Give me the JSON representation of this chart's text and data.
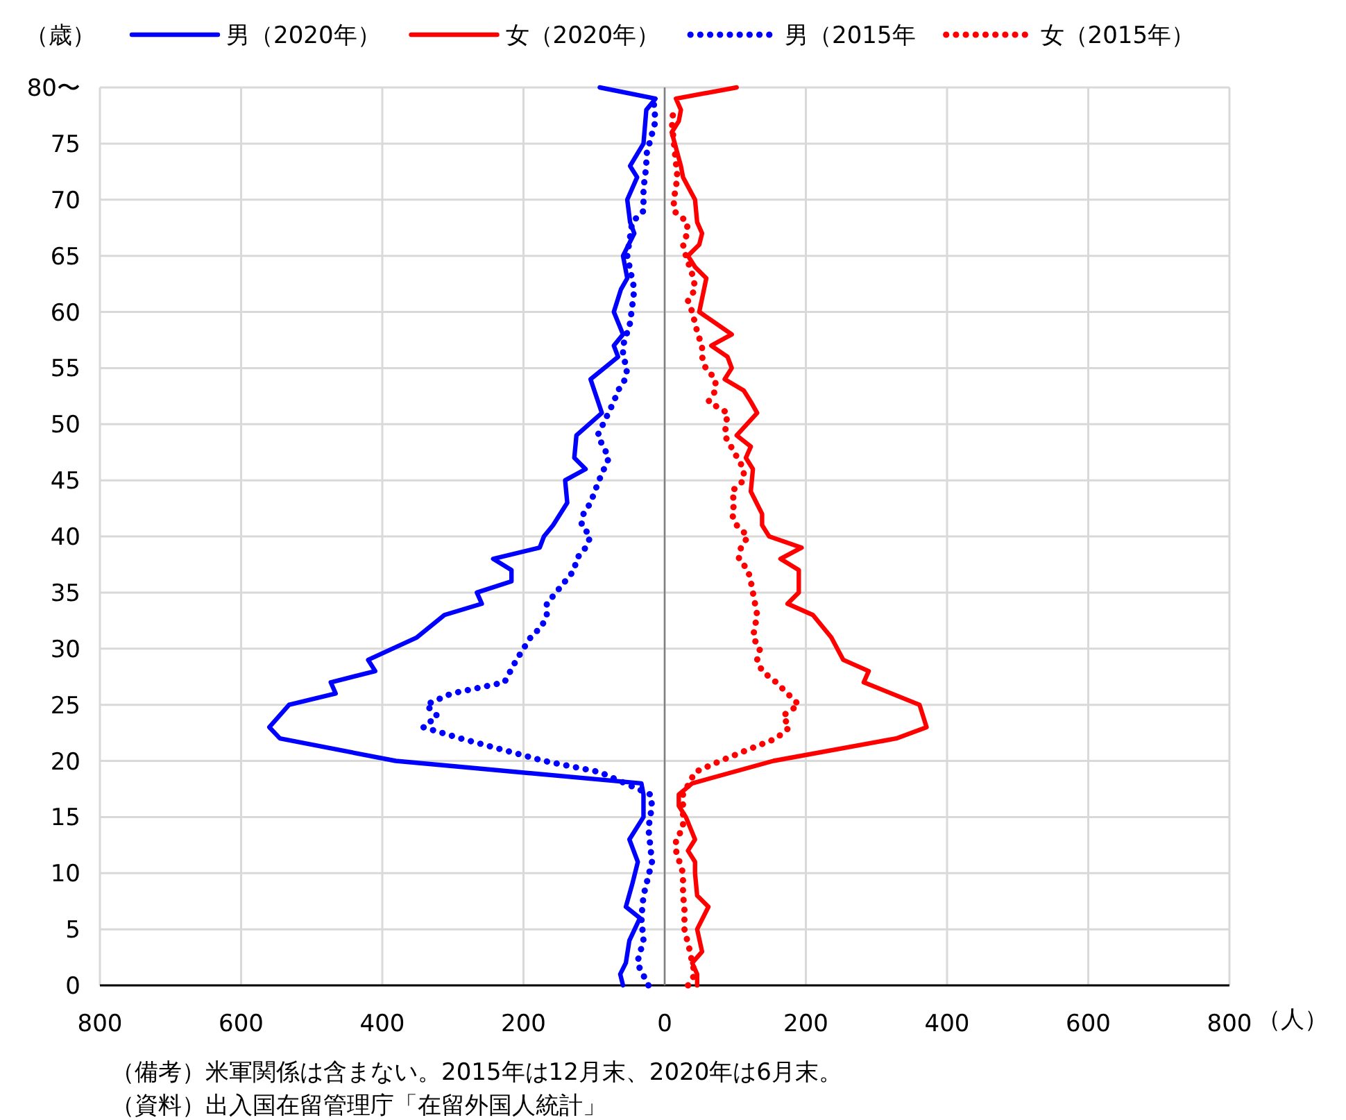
{
  "chart_data": {
    "type": "line",
    "orientation": "horizontal",
    "ylabel": "（歳）",
    "xlabel": "（人）",
    "xlim": [
      -800,
      800
    ],
    "xticks": [
      {
        "value": -800,
        "label": "800"
      },
      {
        "value": -600,
        "label": "600"
      },
      {
        "value": -400,
        "label": "400"
      },
      {
        "value": -200,
        "label": "200"
      },
      0,
      200,
      400,
      600,
      800
    ],
    "ylim": [
      0,
      80
    ],
    "yticks": [
      0,
      5,
      10,
      15,
      20,
      25,
      30,
      35,
      40,
      45,
      50,
      55,
      60,
      65,
      70,
      75,
      {
        "value": 80,
        "label": "80〜"
      }
    ],
    "grid": true,
    "legend": "top",
    "ref_lines": [
      {
        "axis": "x",
        "value": 0,
        "color": "#7f7f7f"
      }
    ],
    "series": [
      {
        "name": "男（2020年）",
        "color": "#0000ff",
        "line_style": "solid",
        "x": [
          0,
          1,
          2,
          4,
          6,
          7,
          9,
          11,
          13,
          15,
          17,
          18,
          20,
          22,
          23,
          25,
          26,
          27,
          28,
          29,
          31,
          33,
          34,
          35,
          36,
          37,
          38,
          39,
          40,
          41,
          43,
          45,
          46,
          47,
          49,
          51,
          54,
          56,
          57,
          58,
          60,
          62,
          63,
          65,
          67,
          68,
          70,
          72,
          73,
          75,
          78,
          79,
          80
        ],
        "values": [
          -59,
          -63,
          -55,
          -50,
          -35,
          -55,
          -46,
          -38,
          -50,
          -30,
          -30,
          -33,
          -381,
          -545,
          -560,
          -532,
          -466,
          -473,
          -410,
          -420,
          -351,
          -312,
          -259,
          -266,
          -217,
          -217,
          -243,
          -177,
          -171,
          -158,
          -138,
          -141,
          -112,
          -128,
          -125,
          -89,
          -105,
          -66,
          -72,
          -59,
          -72,
          -62,
          -53,
          -59,
          -43,
          -49,
          -53,
          -39,
          -49,
          -30,
          -26,
          -13,
          -92
        ]
      },
      {
        "name": "女（2020年）",
        "color": "#ff0000",
        "line_style": "solid",
        "x": [
          0,
          1,
          2,
          3,
          5,
          7,
          8,
          10,
          11,
          12,
          13,
          15,
          16,
          17,
          18,
          20,
          22,
          23,
          25,
          27,
          28,
          29,
          31,
          33,
          34,
          35,
          37,
          38,
          39,
          40,
          41,
          42,
          44,
          46,
          47,
          48,
          49,
          51,
          52,
          53,
          54,
          55,
          56,
          57,
          58,
          59,
          60,
          63,
          64,
          65,
          66,
          67,
          68,
          70,
          72,
          73,
          76,
          77,
          78,
          79,
          80
        ],
        "values": [
          46,
          46,
          39,
          53,
          46,
          62,
          46,
          43,
          43,
          33,
          43,
          30,
          20,
          20,
          39,
          154,
          328,
          371,
          361,
          282,
          289,
          253,
          236,
          210,
          174,
          190,
          190,
          164,
          194,
          148,
          138,
          138,
          122,
          125,
          115,
          122,
          102,
          131,
          122,
          112,
          85,
          95,
          89,
          66,
          95,
          72,
          49,
          59,
          43,
          33,
          49,
          53,
          46,
          43,
          26,
          23,
          10,
          20,
          23,
          16,
          102
        ]
      },
      {
        "name": "男（2015年",
        "color": "#0000ff",
        "line_style": "dotted",
        "x": [
          0,
          2,
          4,
          6,
          8,
          9,
          11,
          14,
          16,
          17,
          19,
          20,
          21,
          22,
          23,
          24,
          25,
          26,
          27,
          29,
          30,
          31,
          32,
          33,
          34,
          36,
          37,
          38,
          39,
          40,
          41,
          42,
          43,
          45,
          47,
          49,
          52,
          53,
          54,
          55,
          56,
          57,
          59,
          60,
          62,
          65,
          68,
          69,
          71,
          73,
          74,
          77,
          79
        ],
        "values": [
          -23,
          -39,
          -30,
          -33,
          -30,
          -26,
          -18,
          -23,
          -18,
          -20,
          -92,
          -171,
          -230,
          -289,
          -342,
          -322,
          -338,
          -302,
          -227,
          -210,
          -200,
          -190,
          -174,
          -167,
          -167,
          -141,
          -128,
          -125,
          -112,
          -105,
          -118,
          -115,
          -105,
          -93,
          -79,
          -95,
          -72,
          -66,
          -56,
          -53,
          -59,
          -59,
          -49,
          -47,
          -43,
          -53,
          -46,
          -30,
          -30,
          -26,
          -26,
          -13,
          -16
        ]
      },
      {
        "name": "女（2015年）",
        "color": "#ff0000",
        "line_style": "dotted",
        "x": [
          0,
          1,
          2,
          3,
          5,
          6,
          7,
          8,
          10,
          11,
          12,
          13,
          14,
          16,
          17,
          19,
          20,
          21,
          22,
          23,
          24,
          25,
          26,
          27,
          28,
          29,
          30,
          31,
          33,
          34,
          35,
          36,
          37,
          38,
          39,
          40,
          41,
          42,
          43,
          44,
          45,
          46,
          49,
          51,
          52,
          53,
          54,
          55,
          56,
          57,
          58,
          60,
          61,
          62,
          63,
          65,
          66,
          67,
          68,
          69,
          70,
          72,
          77,
          78
        ],
        "values": [
          33,
          43,
          39,
          36,
          28,
          28,
          28,
          26,
          26,
          21,
          16,
          16,
          26,
          26,
          26,
          43,
          79,
          118,
          158,
          177,
          167,
          190,
          174,
          158,
          138,
          131,
          135,
          125,
          131,
          128,
          125,
          122,
          118,
          105,
          108,
          118,
          102,
          95,
          99,
          95,
          112,
          112,
          85,
          89,
          62,
          72,
          72,
          58,
          53,
          53,
          47,
          39,
          33,
          43,
          41,
          30,
          26,
          32,
          32,
          13,
          13,
          18,
          10,
          13
        ]
      }
    ],
    "annotations": [
      "（備考）米軍関係は含まない。2015年は12月末、2020年は6月末。",
      "（資料）出入国在留管理庁「在留外国人統計」"
    ]
  }
}
